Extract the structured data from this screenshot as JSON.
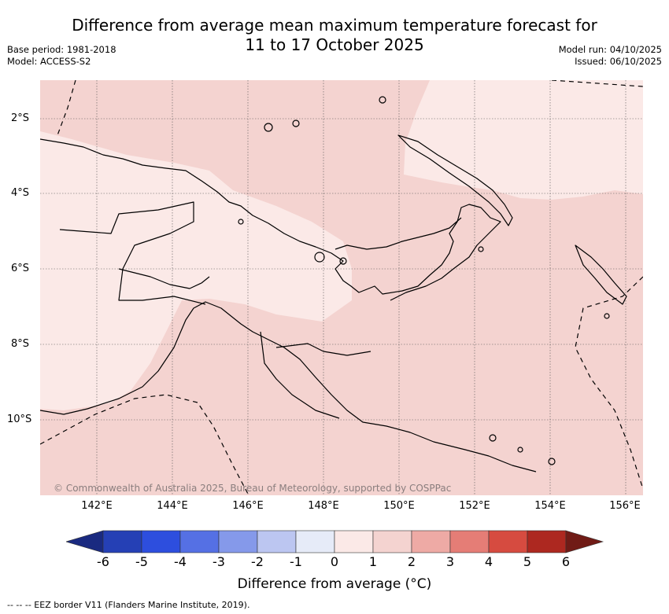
{
  "title": "Difference from average mean maximum temperature forecast for\n11 to 17 October 2025",
  "meta_left": "Base period: 1981-2018\nModel: ACCESS-S2",
  "meta_right": "Model run: 04/10/2025\nIssued: 06/10/2025",
  "lat_labels": [
    "2°S",
    "4°S",
    "6°S",
    "8°S",
    "10°S"
  ],
  "lon_labels": [
    "142°E",
    "144°E",
    "146°E",
    "148°E",
    "150°E",
    "152°E",
    "154°E",
    "156°E"
  ],
  "copyright": "© Commonwealth of Australia 2025, Bureau of Meteorology, supported by COSPPac",
  "colorbar": {
    "ticks": [
      "-6",
      "-5",
      "-4",
      "-3",
      "-2",
      "-1",
      "0",
      "1",
      "2",
      "3",
      "4",
      "5",
      "6"
    ],
    "colors": [
      "#1a2a80",
      "#2540b5",
      "#2d4ede",
      "#5570e4",
      "#8599ea",
      "#bcc6f1",
      "#e6ebf8",
      "#fbe9e7",
      "#f4d3d0",
      "#eeaaa5",
      "#e57d76",
      "#d64b40",
      "#ad2820",
      "#701b16"
    ],
    "label": "Difference from average (°C)"
  },
  "map_colors": {
    "band_0_1": "#fbe9e7",
    "band_1_2": "#f4d3d0",
    "coastline": "#000000"
  },
  "footnote": "--  --  -- EEZ border V11 (Flanders Marine Institute, 2019)."
}
